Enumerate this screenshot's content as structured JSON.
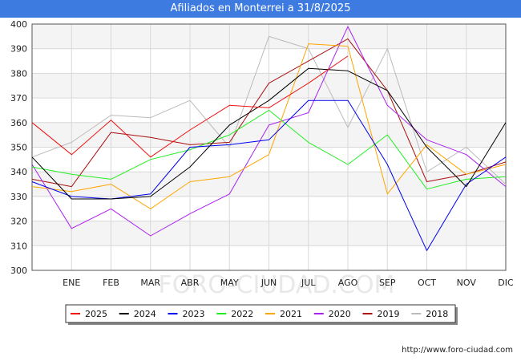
{
  "title": "Afiliados en Monterrei a 31/8/2025",
  "source": "http://www.foro-ciudad.com",
  "watermark": "FORO-CIUDAD.COM",
  "chart_data": {
    "type": "line",
    "title": "Afiliados en Monterrei a 31/8/2025",
    "xlabel": "",
    "ylabel": "",
    "categories": [
      "",
      "ENE",
      "FEB",
      "MAR",
      "ABR",
      "MAY",
      "JUN",
      "JUL",
      "AGO",
      "SEP",
      "OCT",
      "NOV",
      "DIC"
    ],
    "ylim": [
      300,
      400
    ],
    "yticks": [
      300,
      310,
      320,
      330,
      340,
      350,
      360,
      370,
      380,
      390,
      400
    ],
    "grid": true,
    "legend_position": "bottom",
    "series": [
      {
        "name": "2025",
        "color": "#ee1111",
        "values": [
          360,
          347,
          361,
          346,
          357,
          367,
          366,
          376,
          387,
          null,
          null,
          null,
          null
        ]
      },
      {
        "name": "2024",
        "color": "#000000",
        "values": [
          346,
          329,
          329,
          330,
          342,
          359,
          369,
          382,
          381,
          373,
          350,
          334,
          360
        ]
      },
      {
        "name": "2023",
        "color": "#0000ee",
        "values": [
          336,
          330,
          329,
          331,
          350,
          351,
          353,
          369,
          369,
          343,
          308,
          335,
          346
        ]
      },
      {
        "name": "2022",
        "color": "#22ee22",
        "values": [
          342,
          339,
          337,
          345,
          349,
          355,
          365,
          352,
          343,
          355,
          333,
          337,
          338
        ]
      },
      {
        "name": "2021",
        "color": "#ffa500",
        "values": [
          334,
          332,
          335,
          325,
          336,
          338,
          347,
          392,
          391,
          331,
          351,
          339,
          343
        ]
      },
      {
        "name": "2020",
        "color": "#aa22ee",
        "values": [
          343,
          317,
          325,
          314,
          323,
          331,
          359,
          364,
          399,
          367,
          353,
          347,
          334
        ]
      },
      {
        "name": "2019",
        "color": "#aa1111",
        "values": [
          337,
          334,
          356,
          354,
          351,
          352,
          376,
          385,
          394,
          373,
          336,
          339,
          344
        ]
      },
      {
        "name": "2018",
        "color": "#bbbbbb",
        "values": [
          346,
          352,
          363,
          362,
          369,
          350,
          395,
          390,
          358,
          390,
          340,
          350,
          335
        ]
      }
    ]
  }
}
